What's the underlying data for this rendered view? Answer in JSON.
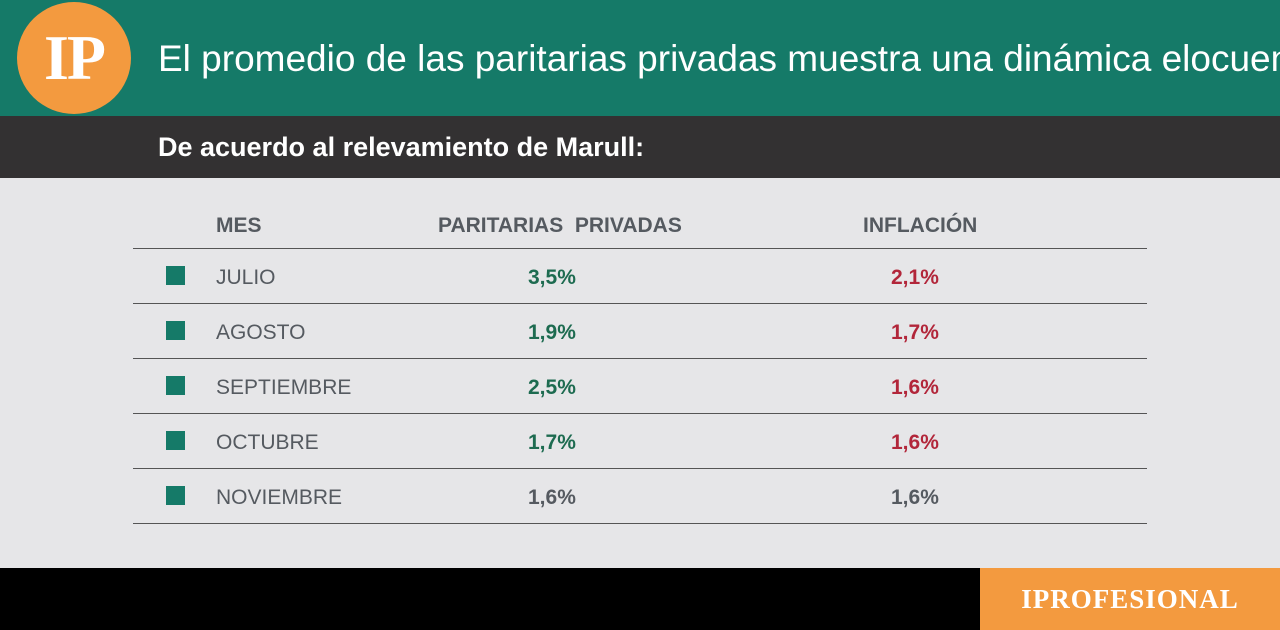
{
  "header": {
    "logo_text": "IP",
    "title": "El promedio de las paritarias privadas muestra una dinámica elocuente."
  },
  "subheader": {
    "title": "De acuerdo al relevamiento de Marull:"
  },
  "colors": {
    "header_bg": "#157a68",
    "accent_orange": "#f39a3f",
    "positive_green": "#1d6b50",
    "negative_red": "#b2263a",
    "neutral_gray": "#555a60"
  },
  "chart_data": {
    "type": "table",
    "columns": [
      "MES",
      "PARITARIAS  PRIVADAS",
      "INFLACIÓN"
    ],
    "rows": [
      {
        "mes": "JULIO",
        "paritarias": "3,5%",
        "inflacion": "2,1%",
        "highlight": true
      },
      {
        "mes": "AGOSTO",
        "paritarias": "1,9%",
        "inflacion": "1,7%",
        "highlight": true
      },
      {
        "mes": "SEPTIEMBRE",
        "paritarias": "2,5%",
        "inflacion": "1,6%",
        "highlight": true
      },
      {
        "mes": "OCTUBRE",
        "paritarias": "1,7%",
        "inflacion": "1,6%",
        "highlight": true
      },
      {
        "mes": "NOVIEMBRE",
        "paritarias": "1,6%",
        "inflacion": "1,6%",
        "highlight": false
      }
    ]
  },
  "footer": {
    "brand": "IPROFESIONAL"
  }
}
